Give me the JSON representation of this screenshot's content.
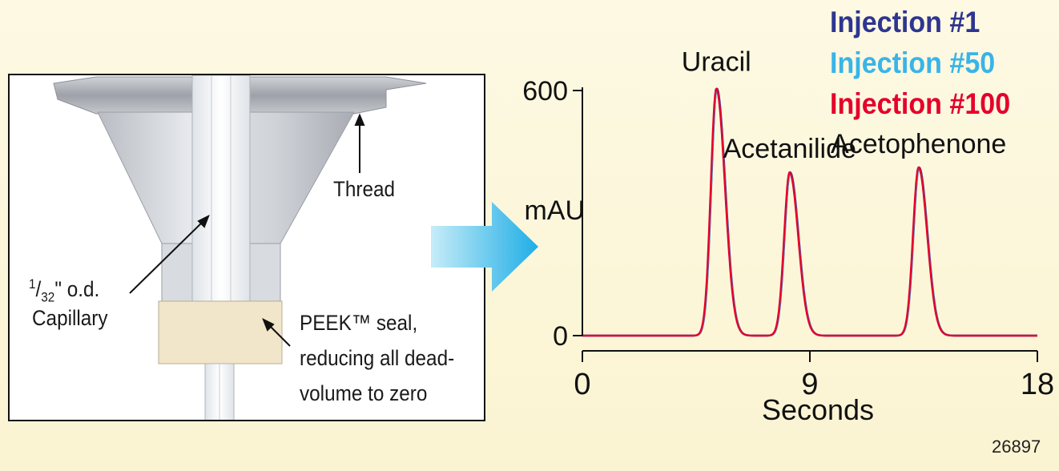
{
  "diagram": {
    "thread_label": "Thread",
    "capillary_label_line1_prefix": "1",
    "capillary_label_line1_fraction": "32",
    "capillary_label_line1_suffix": "\" o.d.",
    "capillary_label_line2": "Capillary",
    "seal_label_line1": "PEEK™ seal,",
    "seal_label_line2": "reducing all dead-",
    "seal_label_line3": "volume to zero"
  },
  "arrow": {
    "icon": "arrow-right-icon",
    "color_start": "#c6ecf8",
    "color_end": "#1faee6"
  },
  "legend": [
    {
      "label": "Injection #1",
      "color": "#2e3591"
    },
    {
      "label": "Injection #50",
      "color": "#39b4e8"
    },
    {
      "label": "Injection #100",
      "color": "#e4002b"
    }
  ],
  "figure_id": "26897",
  "chart_data": {
    "type": "line",
    "xlabel": "Seconds",
    "ylabel": "mAU",
    "xlim": [
      0,
      18
    ],
    "ylim": [
      0,
      600
    ],
    "x_ticks": [
      0,
      9,
      18
    ],
    "y_ticks": [
      0,
      600
    ],
    "grid": false,
    "legend_position": "top-right",
    "annotations": [
      {
        "text": "Uracil",
        "x": 5.3,
        "y": 605
      },
      {
        "text": "Acetanilide",
        "x": 8.2,
        "y": 400
      },
      {
        "text": "Acetophenone",
        "x": 13.3,
        "y": 412
      }
    ],
    "peaks": [
      {
        "name": "Uracil",
        "time": 5.3,
        "height": 605
      },
      {
        "name": "Acetanilide",
        "time": 8.2,
        "height": 400
      },
      {
        "name": "Acetophenone",
        "time": 13.3,
        "height": 412
      }
    ],
    "series": [
      {
        "name": "Injection #1",
        "color": "#2e3591"
      },
      {
        "name": "Injection #50",
        "color": "#39b4e8"
      },
      {
        "name": "Injection #100",
        "color": "#e4002b"
      }
    ]
  }
}
